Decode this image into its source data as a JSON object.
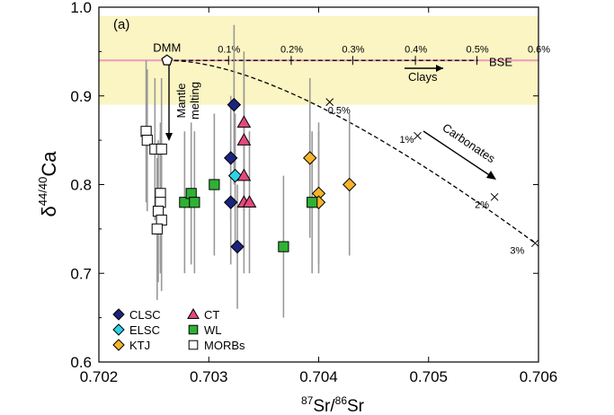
{
  "chart_data": {
    "type": "scatter",
    "panel_label": "(a)",
    "xlabel_sup": "87",
    "xlabel_mid": "Sr/",
    "xlabel_sup2": "86",
    "xlabel_end": "Sr",
    "ylabel_main": "δ",
    "ylabel_sup": "44/40",
    "ylabel_end": "Ca",
    "xlim": [
      0.702,
      0.706
    ],
    "ylim": [
      0.6,
      1.0
    ],
    "xticks": [
      "0.702",
      "0.703",
      "0.704",
      "0.705",
      "0.706"
    ],
    "yticks": [
      "0.6",
      "0.7",
      "0.8",
      "0.9",
      "1.0"
    ],
    "bse_band": {
      "ymin": 0.89,
      "ymax": 0.99,
      "color": "#fbf5c3"
    },
    "bse_line": {
      "y": 0.94,
      "color": "#ee99bb",
      "label": "BSE"
    },
    "dmm": {
      "label": "DMM",
      "x": 0.70262,
      "y": 0.94
    },
    "clays_curve": {
      "label": "Clays",
      "x_end": 0.70545,
      "ticks": [
        {
          "label": "0.1%",
          "x": 0.70318
        },
        {
          "label": "0.2%",
          "x": 0.70375
        },
        {
          "label": "0.3%",
          "x": 0.70431
        },
        {
          "label": "0.4%",
          "x": 0.70488
        },
        {
          "label": "0.5%",
          "x": 0.70544
        },
        {
          "label": "0.6%",
          "x": 0.706
        }
      ]
    },
    "carbonates_curve": {
      "label": "Carbonates",
      "points": [
        {
          "label": "0.5%",
          "x": 0.7041,
          "y": 0.893
        },
        {
          "label": "1%",
          "x": 0.7049,
          "y": 0.855
        },
        {
          "label": "2%",
          "x": 0.7056,
          "y": 0.786
        },
        {
          "label": "3%",
          "x": 0.70597,
          "y": 0.734
        }
      ]
    },
    "mantle_melting_label": [
      "Mantle",
      "melting"
    ],
    "series": [
      {
        "name": "CLSC",
        "marker": "diamond",
        "color": "#1a237e",
        "points": [
          {
            "x": 0.70323,
            "y": 0.89,
            "lo": 0.8,
            "hi": 0.98
          },
          {
            "x": 0.7032,
            "y": 0.83,
            "lo": 0.76,
            "hi": 0.9
          },
          {
            "x": 0.7032,
            "y": 0.78,
            "lo": 0.71,
            "hi": 0.85
          },
          {
            "x": 0.70326,
            "y": 0.73,
            "lo": 0.66,
            "hi": 0.8
          }
        ]
      },
      {
        "name": "ELSC",
        "marker": "diamond",
        "color": "#2ad4e6",
        "points": [
          {
            "x": 0.70324,
            "y": 0.81,
            "lo": 0.73,
            "hi": 0.88
          }
        ]
      },
      {
        "name": "KTJ",
        "marker": "diamond",
        "color": "#f5b429",
        "points": [
          {
            "x": 0.70392,
            "y": 0.83,
            "lo": 0.74,
            "hi": 0.92
          },
          {
            "x": 0.704,
            "y": 0.79,
            "lo": 0.71,
            "hi": 0.87
          },
          {
            "x": 0.704,
            "y": 0.78,
            "lo": 0.7,
            "hi": 0.86
          },
          {
            "x": 0.70428,
            "y": 0.8,
            "lo": 0.72,
            "hi": 0.88
          }
        ]
      },
      {
        "name": "CT",
        "marker": "triangle",
        "color": "#e04a7c",
        "points": [
          {
            "x": 0.70332,
            "y": 0.87,
            "lo": 0.79,
            "hi": 0.95
          },
          {
            "x": 0.70332,
            "y": 0.85,
            "lo": 0.77,
            "hi": 0.93
          },
          {
            "x": 0.70332,
            "y": 0.81,
            "lo": 0.73,
            "hi": 0.89
          },
          {
            "x": 0.70332,
            "y": 0.78,
            "lo": 0.7,
            "hi": 0.86
          },
          {
            "x": 0.70337,
            "y": 0.78,
            "lo": 0.7,
            "hi": 0.86
          }
        ]
      },
      {
        "name": "WL",
        "marker": "square",
        "color": "#2eb135",
        "points": [
          {
            "x": 0.70278,
            "y": 0.78,
            "lo": 0.7,
            "hi": 0.86
          },
          {
            "x": 0.70284,
            "y": 0.79,
            "lo": 0.71,
            "hi": 0.87
          },
          {
            "x": 0.70287,
            "y": 0.78,
            "lo": 0.7,
            "hi": 0.86
          },
          {
            "x": 0.70305,
            "y": 0.8,
            "lo": 0.72,
            "hi": 0.88
          },
          {
            "x": 0.70368,
            "y": 0.73,
            "lo": 0.65,
            "hi": 0.81
          },
          {
            "x": 0.70394,
            "y": 0.78,
            "lo": 0.7,
            "hi": 0.86
          }
        ]
      },
      {
        "name": "MORBs",
        "marker": "square",
        "color": "#ffffff",
        "points": [
          {
            "x": 0.70243,
            "y": 0.86,
            "lo": 0.78,
            "hi": 0.94
          },
          {
            "x": 0.70244,
            "y": 0.85,
            "lo": 0.77,
            "hi": 0.93
          },
          {
            "x": 0.70251,
            "y": 0.84,
            "lo": 0.76,
            "hi": 0.92
          },
          {
            "x": 0.70257,
            "y": 0.84,
            "lo": 0.76,
            "hi": 0.92
          },
          {
            "x": 0.70256,
            "y": 0.79,
            "lo": 0.71,
            "hi": 0.87
          },
          {
            "x": 0.70256,
            "y": 0.78,
            "lo": 0.7,
            "hi": 0.86
          },
          {
            "x": 0.70254,
            "y": 0.77,
            "lo": 0.69,
            "hi": 0.85
          },
          {
            "x": 0.70257,
            "y": 0.76,
            "lo": 0.68,
            "hi": 0.84
          },
          {
            "x": 0.70253,
            "y": 0.75,
            "lo": 0.67,
            "hi": 0.83
          }
        ]
      }
    ]
  }
}
